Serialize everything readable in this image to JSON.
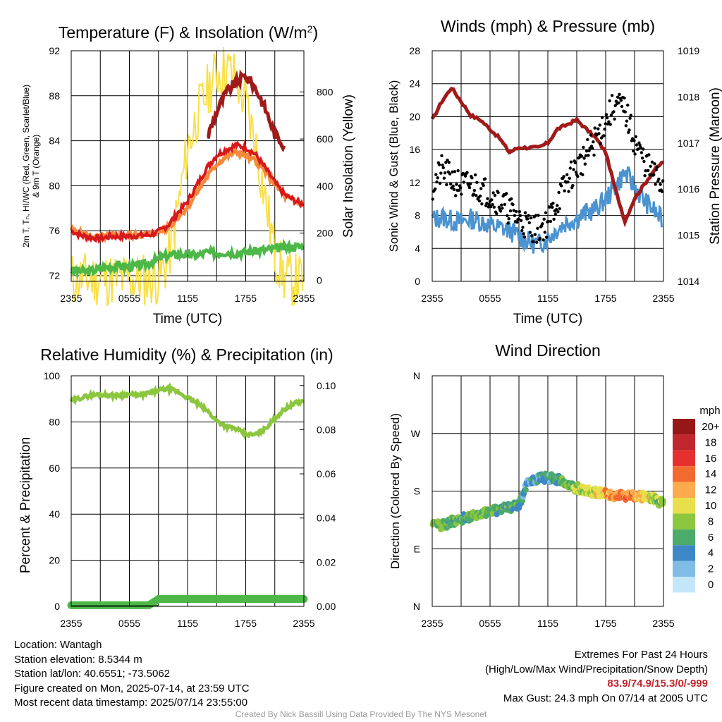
{
  "info": {
    "location": "Location: Wantagh",
    "elevation": "Station elevation: 8.5344 m",
    "latlon": "Station lat/lon: 40.6551; -73.5062",
    "created": "Figure created on Mon, 2025-07-14, at 23:59 UTC",
    "recent": "Most recent data timestamp: 2025/07/14 23:55:00"
  },
  "extremes": {
    "title": "Extremes For Past 24 Hours",
    "subtitle": "(High/Low/Max Wind/Precipitation/Snow Depth)",
    "values": "83.9/74.9/15.3/0/-999",
    "gust": "Max Gust: 24.3 mph On 07/14 at 2005 UTC"
  },
  "credit": "Created By Nick Bassill Using Data Provided By The NYS Mesonet",
  "colors": {
    "red": "#d7191c",
    "scarlet": "#c0272d",
    "green": "#4db848",
    "orange": "#f58a3c",
    "yellow": "#f8e047",
    "maroon": "#a11a1a",
    "blue": "#4a93d0",
    "black": "#000000",
    "rh": "#8cc63f"
  },
  "chart_data": [
    {
      "type": "line",
      "title": "Temperature (F) & Insolation (W/m²)",
      "xlabel": "Time (UTC)",
      "ylabel": "2m T, Td, HI/WC (Red, Green, Scarlet/Blue) & 9m T (Orange)",
      "ylabel2": "Solar Insolation (Yellow)",
      "x_ticks": [
        "2355",
        "0555",
        "1155",
        "1755",
        "2355"
      ],
      "ylim": [
        71.5,
        92
      ],
      "y_ticks": [
        72,
        76,
        80,
        84,
        88,
        92
      ],
      "y2lim": [
        -5,
        975
      ],
      "y2_ticks": [
        0,
        200,
        400,
        600,
        800
      ],
      "hours": [
        0,
        1,
        2,
        3,
        4,
        5,
        6,
        7,
        8,
        9,
        10,
        11,
        12,
        13,
        14,
        15,
        16,
        17,
        18,
        19,
        20,
        21,
        22,
        23,
        24
      ],
      "series": [
        {
          "name": "2m T (Red)",
          "values": [
            76.0,
            75.6,
            75.4,
            75.3,
            75.5,
            75.5,
            75.5,
            75.6,
            75.6,
            75.9,
            76.5,
            77.6,
            78.6,
            80.1,
            81.6,
            82.7,
            83.2,
            83.6,
            83.4,
            82.8,
            81.6,
            80.3,
            79.2,
            78.7,
            78.3
          ]
        },
        {
          "name": "9m T (Orange)",
          "values": [
            76.1,
            75.7,
            75.5,
            75.4,
            75.6,
            75.6,
            75.6,
            75.6,
            75.7,
            75.9,
            76.4,
            77.2,
            78.1,
            79.5,
            80.8,
            81.9,
            82.6,
            83.0,
            82.7,
            82.2,
            81.3,
            80.2,
            79.1,
            78.6,
            78.3
          ]
        },
        {
          "name": "Td (Green)",
          "values": [
            72.5,
            72.4,
            72.4,
            72.6,
            72.8,
            72.9,
            72.8,
            72.9,
            73.1,
            73.5,
            73.8,
            73.9,
            73.9,
            73.8,
            74.1,
            74.0,
            74.1,
            74.0,
            74.1,
            74.2,
            74.3,
            74.4,
            74.5,
            74.6,
            74.6
          ]
        },
        {
          "name": "HI (Scarlet)",
          "values": [
            null,
            null,
            null,
            null,
            null,
            null,
            null,
            null,
            null,
            null,
            null,
            null,
            null,
            null,
            84.2,
            86.6,
            88.3,
            89.2,
            89.8,
            88.7,
            86.9,
            84.6,
            83.6,
            null,
            null
          ]
        },
        {
          "name": "Solar Insolation (Yellow)",
          "values": [
            5,
            5,
            5,
            5,
            5,
            5,
            5,
            5,
            5,
            10,
            80,
            300,
            560,
            700,
            800,
            880,
            900,
            860,
            750,
            580,
            350,
            120,
            10,
            2,
            0
          ]
        }
      ]
    },
    {
      "type": "line",
      "title": "Winds (mph) & Pressure (mb)",
      "xlabel": "Time (UTC)",
      "ylabel": "Sonic Wind & Gust (Blue, Black)",
      "ylabel2": "Station Pressure (Maroon)",
      "x_ticks": [
        "2355",
        "0555",
        "1155",
        "1755",
        "2355"
      ],
      "ylim": [
        0,
        28
      ],
      "y_ticks": [
        0,
        4,
        8,
        12,
        16,
        20,
        24,
        28
      ],
      "y2lim": [
        1014,
        1019
      ],
      "y2_ticks": [
        1014,
        1015,
        1016,
        1017,
        1018,
        1019
      ],
      "hours": [
        0,
        1,
        2,
        3,
        4,
        5,
        6,
        7,
        8,
        9,
        10,
        11,
        12,
        13,
        14,
        15,
        16,
        17,
        18,
        19,
        20,
        21,
        22,
        23,
        24
      ],
      "series": [
        {
          "name": "Sonic Wind (Blue)",
          "values": [
            7.5,
            7.8,
            7.4,
            7.2,
            7.6,
            7.3,
            6.8,
            6.5,
            6.2,
            5.5,
            4.8,
            4.5,
            5.2,
            6.4,
            7.2,
            7.6,
            8.3,
            8.8,
            10.0,
            11.5,
            13.2,
            11.5,
            9.8,
            8.6,
            7.2
          ]
        },
        {
          "name": "Gust (Black)",
          "values": [
            11.5,
            13.5,
            12.5,
            11.6,
            11.8,
            11.3,
            10.6,
            9.7,
            8.7,
            7.6,
            6.7,
            6.3,
            7.2,
            9.8,
            12.2,
            13.8,
            15.2,
            17.4,
            19.5,
            21.5,
            20.8,
            17.0,
            14.6,
            12.8,
            11.6
          ]
        },
        {
          "name": "Station Pressure (Maroon)",
          "values": [
            1017.5,
            1017.9,
            1018.2,
            1017.9,
            1017.6,
            1017.5,
            1017.3,
            1017.1,
            1016.8,
            1016.9,
            1016.9,
            1016.9,
            1017.0,
            1017.3,
            1017.4,
            1017.5,
            1017.3,
            1017.1,
            1016.8,
            1016.0,
            1015.3,
            1015.8,
            1016.1,
            1016.4,
            1016.6
          ]
        }
      ]
    },
    {
      "type": "line",
      "title": "Relative Humidity (%) & Precipitation (in)",
      "xlabel": "",
      "ylabel": "Percent & Precipitation",
      "x_ticks": [
        "2355",
        "0555",
        "1155",
        "1755",
        "2355"
      ],
      "ylim": [
        0,
        100
      ],
      "y_ticks": [
        0,
        20,
        40,
        60,
        80,
        100
      ],
      "y2lim": [
        0,
        0.1
      ],
      "y2_ticks": [
        "0.00",
        "0.02",
        "0.04",
        "0.06",
        "0.08",
        "0.10"
      ],
      "hours": [
        0,
        1,
        2,
        3,
        4,
        5,
        6,
        7,
        8,
        9,
        10,
        11,
        12,
        13,
        14,
        15,
        16,
        17,
        18,
        19,
        20,
        21,
        22,
        23,
        24
      ],
      "series": [
        {
          "name": "Relative Humidity",
          "values": [
            89,
            90.5,
            91.5,
            92,
            91.5,
            91.5,
            92,
            91.5,
            92.5,
            93.5,
            94.5,
            93,
            90.5,
            88,
            85,
            80.5,
            78,
            77,
            74.5,
            74.5,
            77,
            81.5,
            85.5,
            88,
            89
          ]
        },
        {
          "name": "Precipitation",
          "values": [
            0.5,
            0.5,
            0.5,
            0.5,
            0.5,
            0.5,
            0.5,
            0.5,
            0.5,
            3.2,
            3.2,
            3.2,
            3.2,
            3.2,
            3.2,
            3.2,
            3.2,
            3.2,
            3.2,
            3.2,
            3.2,
            3.2,
            3.2,
            3.2,
            3.2
          ]
        }
      ]
    },
    {
      "type": "scatter",
      "title": "Wind Direction",
      "xlabel": "",
      "ylabel": "Direction (Colored By Speed)",
      "x_ticks": [
        "2355",
        "0555",
        "1155",
        "1755",
        "2355"
      ],
      "y_ticks": [
        "N",
        "E",
        "S",
        "W",
        "N"
      ],
      "ylim": [
        0,
        360
      ],
      "hours": [
        0,
        1,
        2,
        3,
        4,
        5,
        6,
        7,
        8,
        9,
        10,
        11,
        12,
        13,
        14,
        15,
        16,
        17,
        18,
        19,
        20,
        21,
        22,
        23,
        24
      ],
      "series": [
        {
          "name": "Direction (deg)",
          "values": [
            125,
            127,
            132,
            137,
            141,
            145,
            148,
            152,
            154,
            157,
            197,
            200,
            201,
            198,
            190,
            185,
            180,
            178,
            176,
            173,
            172,
            172,
            172,
            168,
            160
          ]
        },
        {
          "name": "Speed (mph)",
          "values": [
            7,
            7,
            6,
            6,
            7,
            7,
            7,
            6,
            6,
            5,
            4,
            4,
            4,
            6,
            7,
            8,
            9,
            10,
            12,
            13,
            14,
            13,
            11,
            9,
            7
          ]
        }
      ],
      "legend": {
        "title": "mph",
        "labels": [
          "20+",
          "18",
          "16",
          "14",
          "12",
          "10",
          "8",
          "6",
          "4",
          "2",
          "0"
        ],
        "colors": [
          "#961718",
          "#c0272d",
          "#e63030",
          "#f26a30",
          "#fbaa4c",
          "#e8e04a",
          "#8cc63f",
          "#4caa6a",
          "#3d88c4",
          "#7fbde6",
          "#c4e6f8"
        ]
      }
    }
  ]
}
